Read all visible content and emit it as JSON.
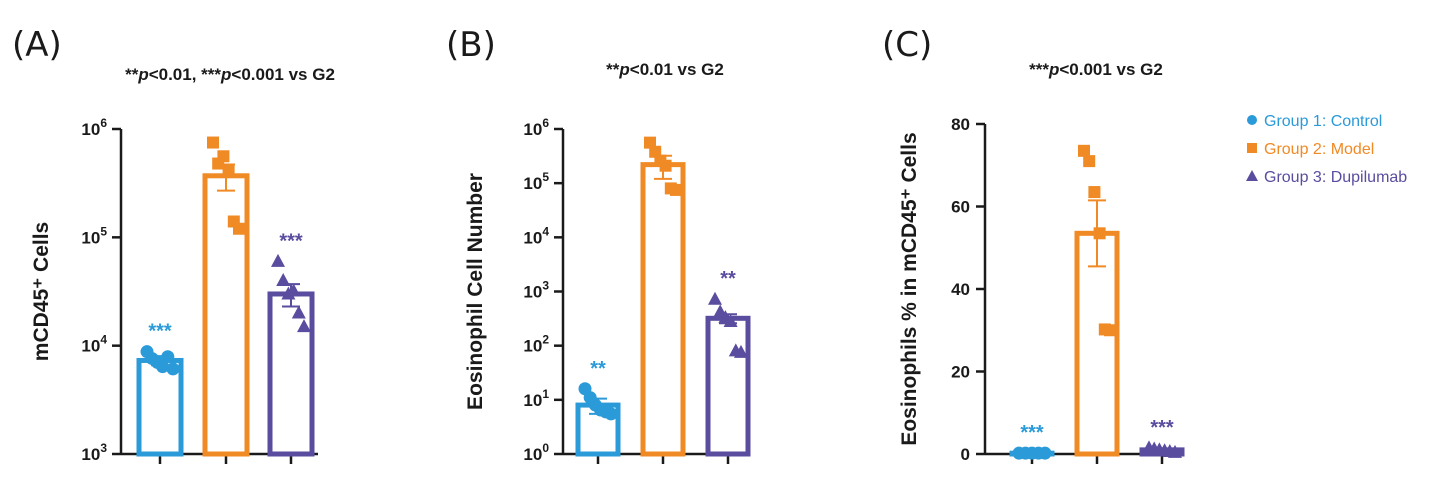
{
  "colors": {
    "group1": "#2b9ad8",
    "group2": "#f08a24",
    "group3": "#5a4c9e",
    "axis": "#1a1a1a"
  },
  "legend": [
    {
      "label": "Group 1: Control",
      "marker": "circle",
      "color_key": "group1"
    },
    {
      "label": "Group 2: Model",
      "marker": "square",
      "color_key": "group2"
    },
    {
      "label": "Group 3: Dupilumab",
      "marker": "triangle",
      "color_key": "group3"
    }
  ],
  "chart_data": [
    {
      "type": "bar",
      "panel": "(A)",
      "title": {
        "pre": "**",
        "p": "p",
        "mid": "<0.01, ***",
        "p2": "p",
        "post": "<0.001 vs G2"
      },
      "ylabel": "mCD45⁺ Cells",
      "scale": "log",
      "ylim_exp": [
        3,
        6
      ],
      "yticks": [
        {
          "base": "10",
          "exp": "3"
        },
        {
          "base": "10",
          "exp": "4"
        },
        {
          "base": "10",
          "exp": "5"
        },
        {
          "base": "10",
          "exp": "6"
        }
      ],
      "groups": [
        {
          "name": "Group 1: Control",
          "mean": 7300,
          "sem": 700,
          "points": [
            8800,
            7600,
            7000,
            6400,
            7900,
            6100
          ],
          "sig": "***"
        },
        {
          "name": "Group 2: Model",
          "mean": 370000,
          "sem": 100000,
          "points": [
            750000,
            480000,
            560000,
            420000,
            140000,
            120000
          ],
          "sig": ""
        },
        {
          "name": "Group 3: Dupilumab",
          "mean": 30000,
          "sem": 7000,
          "points": [
            60000,
            40000,
            30000,
            32000,
            20000,
            15000
          ],
          "sig": "***"
        }
      ]
    },
    {
      "type": "bar",
      "panel": "(B)",
      "title": {
        "pre": "**",
        "p": "p",
        "mid": "<0.01 vs G2",
        "p2": "",
        "post": ""
      },
      "ylabel": "Eosinophil Cell Number",
      "scale": "log",
      "ylim_exp": [
        0,
        6
      ],
      "yticks": [
        {
          "base": "10",
          "exp": "0"
        },
        {
          "base": "10",
          "exp": "1"
        },
        {
          "base": "10",
          "exp": "2"
        },
        {
          "base": "10",
          "exp": "3"
        },
        {
          "base": "10",
          "exp": "4"
        },
        {
          "base": "10",
          "exp": "5"
        },
        {
          "base": "10",
          "exp": "6"
        }
      ],
      "groups": [
        {
          "name": "Group 1: Control",
          "mean": 8,
          "sem": 2.5,
          "points": [
            16,
            11,
            8,
            6.5,
            6,
            5.5
          ],
          "sig": "**"
        },
        {
          "name": "Group 2: Model",
          "mean": 220000,
          "sem": 100000,
          "points": [
            560000,
            380000,
            260000,
            210000,
            80000,
            75000
          ],
          "sig": ""
        },
        {
          "name": "Group 3: Dupilumab",
          "mean": 320,
          "sem": 60,
          "points": [
            720,
            420,
            330,
            280,
            80,
            75
          ],
          "sig": "**"
        }
      ]
    },
    {
      "type": "bar",
      "panel": "(C)",
      "title": {
        "pre": "***",
        "p": "p",
        "mid": "<0.001 vs G2",
        "p2": "",
        "post": ""
      },
      "ylabel": "Eosinophils % in mCD45⁺ Cells",
      "scale": "linear",
      "ylim": [
        0,
        80
      ],
      "yticks": [
        {
          "base": "0"
        },
        {
          "base": "20"
        },
        {
          "base": "40"
        },
        {
          "base": "60"
        },
        {
          "base": "80"
        }
      ],
      "groups": [
        {
          "name": "Group 1: Control",
          "mean": 0.2,
          "sem": 0.1,
          "points": [
            0.2,
            0.2,
            0.2,
            0.2,
            0.2
          ],
          "sig": "***"
        },
        {
          "name": "Group 2: Model",
          "mean": 53.5,
          "sem": 8,
          "points": [
            73.5,
            71.0,
            63.5,
            53.5,
            30.2,
            30.0
          ],
          "sig": ""
        },
        {
          "name": "Group 3: Dupilumab",
          "mean": 1.0,
          "sem": 0.3,
          "points": [
            1.5,
            1.2,
            1.0,
            0.8,
            0.6,
            0.4
          ],
          "sig": "***"
        }
      ]
    }
  ]
}
